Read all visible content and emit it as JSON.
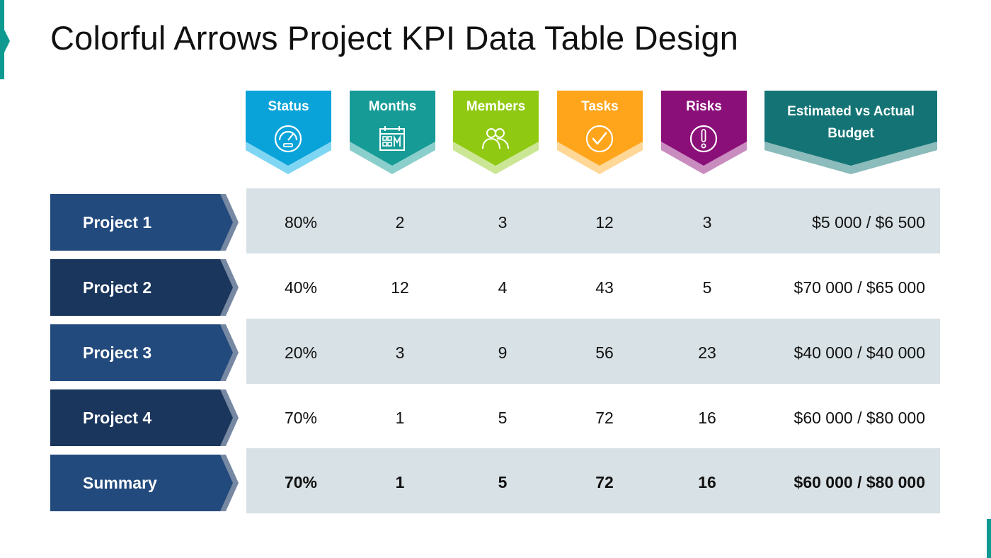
{
  "title": "Colorful Arrows Project KPI Data Table Design",
  "columns": [
    {
      "label": "Status",
      "icon": "gauge-icon",
      "color": "#0aa3d9",
      "shadow": "#7fd6f3"
    },
    {
      "label": "Months",
      "icon": "calendar-icon",
      "color": "#169b96",
      "shadow": "#8bcfcc"
    },
    {
      "label": "Members",
      "icon": "users-icon",
      "color": "#90c912",
      "shadow": "#cbe694"
    },
    {
      "label": "Tasks",
      "icon": "check-circle-icon",
      "color": "#ffa51c",
      "shadow": "#ffd796"
    },
    {
      "label": "Risks",
      "icon": "alert-icon",
      "color": "#8b0f79",
      "shadow": "#c98cbf"
    },
    {
      "label": "Estimated vs Actual Budget",
      "icon": "",
      "color": "#147475",
      "shadow": "#8bbbbb"
    }
  ],
  "rows": [
    {
      "name": "Project 1",
      "values": [
        "80%",
        "2",
        "3",
        "12",
        "3",
        "$5 000 / $6 500"
      ]
    },
    {
      "name": "Project 2",
      "values": [
        "40%",
        "12",
        "4",
        "43",
        "5",
        "$70 000 / $65 000"
      ]
    },
    {
      "name": "Project 3",
      "values": [
        "20%",
        "3",
        "9",
        "56",
        "23",
        "$40 000 / $40 000"
      ]
    },
    {
      "name": "Project 4",
      "values": [
        "70%",
        "1",
        "5",
        "72",
        "16",
        "$60 000 / $80 000"
      ]
    },
    {
      "name": "Summary",
      "values": [
        "70%",
        "1",
        "5",
        "72",
        "16",
        "$60 000 / $80 000"
      ]
    }
  ],
  "colors": {
    "row_label_light": "#234a7d",
    "row_label_dark": "#1a365c",
    "row_label_edge": "#7788a3",
    "band_shade": "#d8e1e5",
    "accent": "#0e9a91"
  }
}
